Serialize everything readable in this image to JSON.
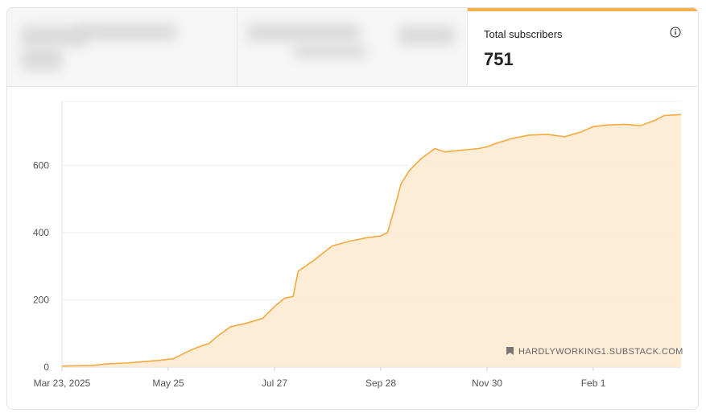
{
  "header": {
    "active_tab": {
      "label": "Total subscribers",
      "value": "751",
      "icon": "info-icon"
    },
    "accent_color": "#f5b04a"
  },
  "watermark": "HARDLYWORKING1.SUBSTACK.COM",
  "chart_data": {
    "type": "area",
    "title": "",
    "xlabel": "",
    "ylabel": "",
    "x_tick_labels": [
      "Mar 23, 2025",
      "May 25",
      "Jul 27",
      "Sep 28",
      "Nov 30",
      "Feb 1"
    ],
    "y_tick_labels": [
      "0",
      "200",
      "400",
      "600"
    ],
    "ylim": [
      0,
      790
    ],
    "grid": true,
    "line_color": "#f5a93f",
    "fill_color": "#fde9cf",
    "series": [
      {
        "x": [
          "2025-03-23",
          "2025-04-01",
          "2025-04-10",
          "2025-04-20",
          "2025-04-30",
          "2025-05-10",
          "2025-05-20",
          "2025-05-28",
          "2025-06-05",
          "2025-06-12",
          "2025-06-18",
          "2025-06-24",
          "2025-07-01",
          "2025-07-10",
          "2025-07-20",
          "2025-07-27",
          "2025-08-02",
          "2025-08-07",
          "2025-08-10",
          "2025-08-20",
          "2025-08-30",
          "2025-09-10",
          "2025-09-20",
          "2025-09-28",
          "2025-10-02",
          "2025-10-06",
          "2025-10-10",
          "2025-10-15",
          "2025-10-22",
          "2025-10-30",
          "2025-11-05",
          "2025-11-15",
          "2025-11-25",
          "2025-11-30",
          "2025-12-05",
          "2025-12-15",
          "2025-12-25",
          "2026-01-05",
          "2026-01-15",
          "2026-01-25",
          "2026-02-01",
          "2026-02-10",
          "2026-02-20",
          "2026-03-01",
          "2026-03-10",
          "2026-03-15",
          "2026-03-25"
        ],
        "y": [
          3,
          4,
          5,
          10,
          12,
          16,
          20,
          25,
          45,
          60,
          70,
          95,
          120,
          130,
          145,
          180,
          205,
          210,
          285,
          320,
          360,
          375,
          385,
          390,
          400,
          470,
          545,
          585,
          620,
          650,
          640,
          645,
          650,
          655,
          665,
          680,
          690,
          692,
          685,
          700,
          715,
          720,
          722,
          718,
          735,
          748,
          751
        ]
      }
    ]
  }
}
